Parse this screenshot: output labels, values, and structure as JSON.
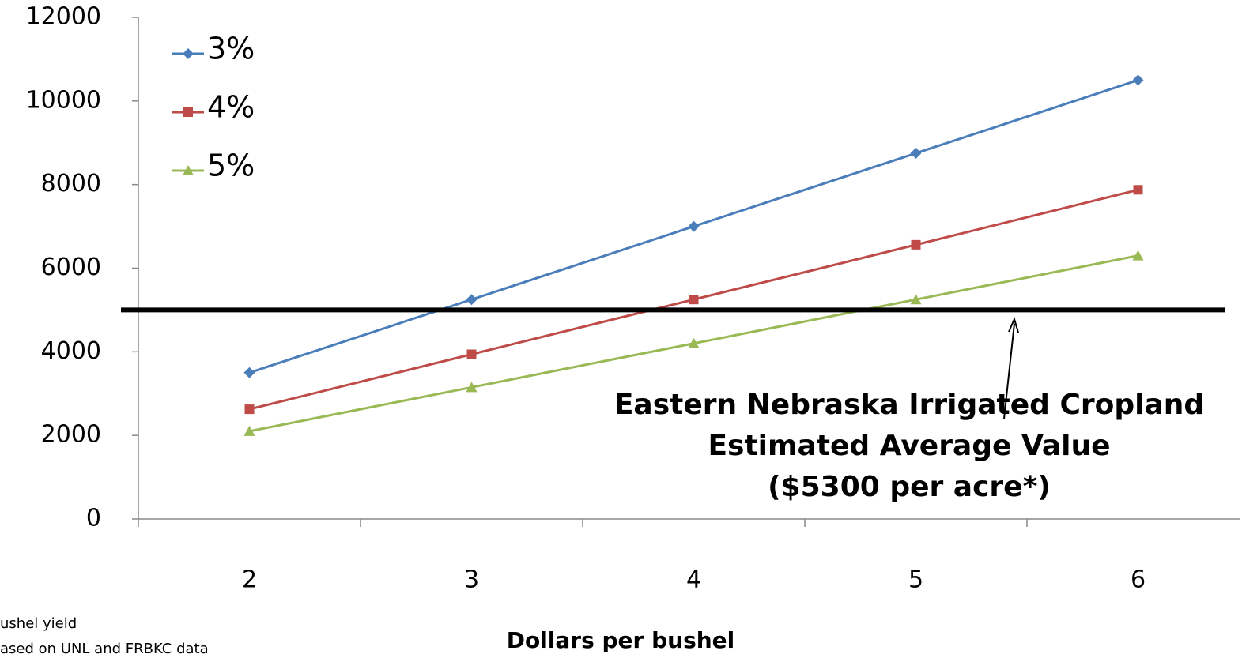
{
  "chart_data": {
    "type": "line",
    "x_label": "Dollars per bushel",
    "categories": [
      "2",
      "3",
      "4",
      "5",
      "6"
    ],
    "series": [
      {
        "name": "3%",
        "color": "#4a7ebb",
        "marker": "diamond",
        "values": [
          3500,
          5250,
          7000,
          8750,
          10500
        ]
      },
      {
        "name": "4%",
        "color": "#be4b48",
        "marker": "square",
        "values": [
          2625,
          3940,
          5250,
          6560,
          7875
        ]
      },
      {
        "name": "5%",
        "color": "#98b954",
        "marker": "triangle",
        "values": [
          2100,
          3150,
          4200,
          5250,
          6300
        ]
      }
    ],
    "ylim": [
      0,
      12000
    ],
    "yticks": [
      0,
      2000,
      4000,
      6000,
      8000,
      10000,
      12000
    ],
    "reference_line": 5000,
    "annotation": [
      "Eastern Nebraska Irrigated Cropland",
      "Estimated Average Value",
      "($5300 per acre*)"
    ],
    "footnotes": [
      "ushel yield",
      "ased on UNL and FRBKC data"
    ],
    "legend": "upper left"
  }
}
